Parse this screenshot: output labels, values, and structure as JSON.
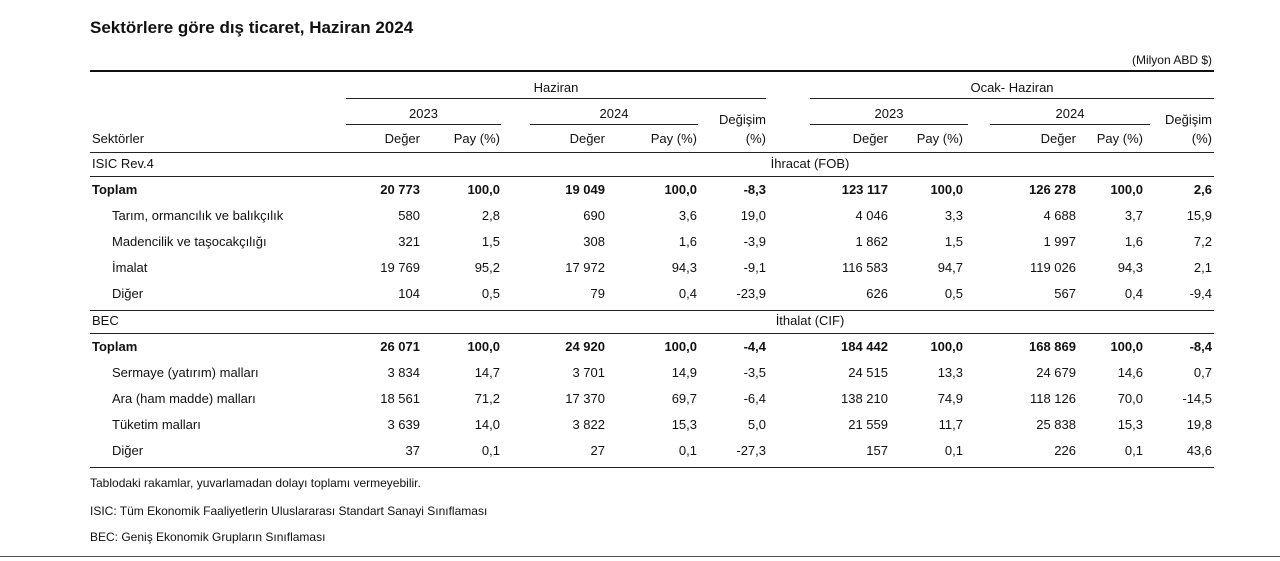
{
  "title": "Sektörlere göre dış ticaret, Haziran 2024",
  "unit": "(Milyon ABD $)",
  "header": {
    "period_june": "Haziran",
    "period_jan_june": "Ocak- Haziran",
    "year_2023": "2023",
    "year_2024": "2024",
    "degisim_line1": "Değişim",
    "degisim_line2": "(%)",
    "sektorler": "Sektörler",
    "deger": "Değer",
    "pay": "Pay (%)"
  },
  "sections": [
    {
      "code": "ISIC  Rev.4",
      "label": "İhracat (FOB)",
      "rows": [
        {
          "name": "Toplam",
          "bold": true,
          "values": [
            "20 773",
            "100,0",
            "19 049",
            "100,0",
            "-8,3",
            "123 117",
            "100,0",
            "126 278",
            "100,0",
            "2,6"
          ]
        },
        {
          "name": "Tarım, ormancılık ve balıkçılık",
          "bold": false,
          "values": [
            "580",
            "2,8",
            "690",
            "3,6",
            "19,0",
            "4 046",
            "3,3",
            "4 688",
            "3,7",
            "15,9"
          ]
        },
        {
          "name": "Madencilik ve taşocakçılığı",
          "bold": false,
          "values": [
            "321",
            "1,5",
            "308",
            "1,6",
            "-3,9",
            "1 862",
            "1,5",
            "1 997",
            "1,6",
            "7,2"
          ]
        },
        {
          "name": "İmalat",
          "bold": false,
          "values": [
            "19 769",
            "95,2",
            "17 972",
            "94,3",
            "-9,1",
            "116 583",
            "94,7",
            "119 026",
            "94,3",
            "2,1"
          ]
        },
        {
          "name": "Diğer",
          "bold": false,
          "values": [
            "104",
            "0,5",
            "79",
            "0,4",
            "-23,9",
            "626",
            "0,5",
            "567",
            "0,4",
            "-9,4"
          ]
        }
      ]
    },
    {
      "code": "BEC",
      "label": "İthalat (CIF)",
      "rows": [
        {
          "name": "Toplam",
          "bold": true,
          "values": [
            "26 071",
            "100,0",
            "24 920",
            "100,0",
            "-4,4",
            "184 442",
            "100,0",
            "168 869",
            "100,0",
            "-8,4"
          ]
        },
        {
          "name": "Sermaye (yatırım) malları",
          "bold": false,
          "values": [
            "3 834",
            "14,7",
            "3 701",
            "14,9",
            "-3,5",
            "24 515",
            "13,3",
            "24 679",
            "14,6",
            "0,7"
          ]
        },
        {
          "name": "Ara (ham madde) malları",
          "bold": false,
          "values": [
            "18 561",
            "71,2",
            "17 370",
            "69,7",
            "-6,4",
            "138 210",
            "74,9",
            "118 126",
            "70,0",
            "-14,5"
          ]
        },
        {
          "name": "Tüketim malları",
          "bold": false,
          "values": [
            "3 639",
            "14,0",
            "3 822",
            "15,3",
            "5,0",
            "21 559",
            "11,7",
            "25 838",
            "15,3",
            "19,8"
          ]
        },
        {
          "name": "Diğer",
          "bold": false,
          "values": [
            "37",
            "0,1",
            "27",
            "0,1",
            "-27,3",
            "157",
            "0,1",
            "226",
            "0,1",
            "43,6"
          ]
        }
      ]
    }
  ],
  "footnotes": [
    "Tablodaki rakamlar, yuvarlamadan dolayı toplamı vermeyebilir.",
    "ISIC: Tüm Ekonomik Faaliyetlerin Uluslararası Standart Sanayi Sınıflaması",
    "BEC: Geniş Ekonomik Grupların Sınıflaması"
  ]
}
